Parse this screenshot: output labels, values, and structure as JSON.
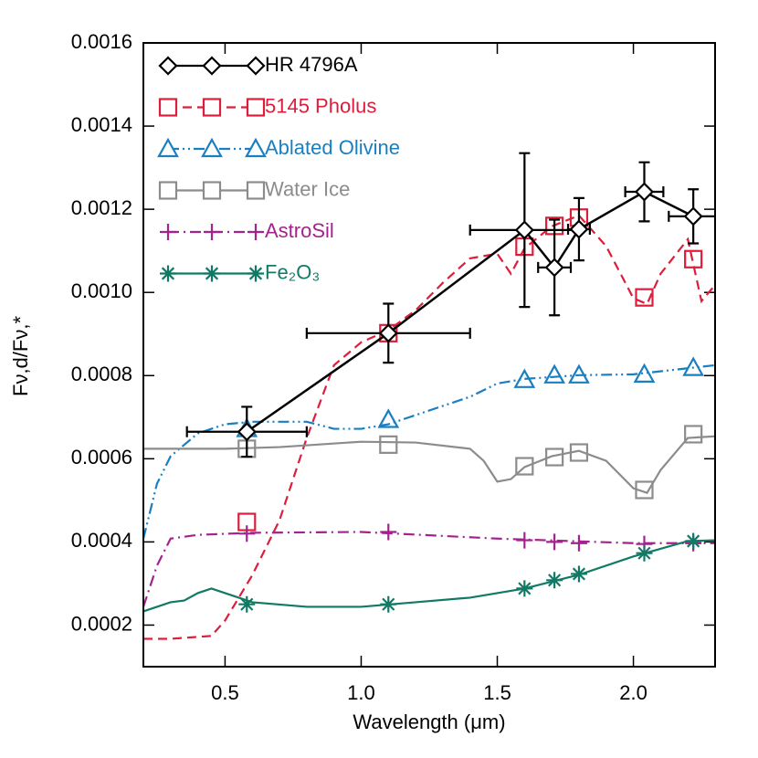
{
  "chart_data": {
    "type": "line",
    "xlabel": "Wavelength (μm)",
    "ylabel": "Fν,d/Fν,*",
    "xlim": [
      0.2,
      2.3
    ],
    "ylim": [
      0.0001,
      0.0016
    ],
    "xticks": [
      0.5,
      {
        "value": 1,
        "label": "1.0"
      },
      1.5,
      {
        "value": 2,
        "label": "2.0"
      }
    ],
    "yticks": [
      0.0002,
      0.0004,
      0.0006,
      0.0008,
      {
        "value": 0.001,
        "label": "0.0010"
      },
      0.0012,
      0.0014,
      0.0016
    ],
    "legend": "upper left",
    "x": [
      0.58,
      1.1,
      1.6,
      1.71,
      1.8,
      2.04,
      2.22
    ],
    "series": [
      {
        "name": "HR 4796A",
        "color": "#000000",
        "marker": "diamond",
        "dash": "solid",
        "values": [
          0.000665,
          0.000902,
          0.00115,
          0.00106,
          0.001152,
          0.001242,
          0.001183
        ],
        "yerr": [
          6e-05,
          7.1e-05,
          0.000185,
          0.000115,
          7.5e-05,
          7.1e-05,
          6.5e-05
        ],
        "xerr": [
          0.22,
          0.3,
          0.2,
          0.06,
          0.04,
          0.07,
          0.09
        ]
      },
      {
        "name": "5145 Pholus",
        "color": "#dc1e3c",
        "marker": "square",
        "dash": "dashed",
        "values": [
          0.000448,
          0.000902,
          0.00111,
          0.00116,
          0.00118,
          0.000988,
          0.00108
        ],
        "curve_x": [
          0.2,
          0.3,
          0.45,
          0.5,
          0.6,
          0.7,
          0.8,
          0.9,
          1.0,
          1.1,
          1.2,
          1.3,
          1.4,
          1.5,
          1.55,
          1.6,
          1.7,
          1.8,
          1.9,
          2.0,
          2.05,
          2.1,
          2.2,
          2.25,
          2.3
        ],
        "curve_y": [
          0.000167,
          0.000167,
          0.000174,
          0.000211,
          0.00032,
          0.000452,
          0.00065,
          0.000825,
          0.00088,
          0.000909,
          0.000957,
          0.001023,
          0.001082,
          0.001093,
          0.001045,
          0.001106,
          0.001159,
          0.001185,
          0.001111,
          0.000986,
          0.000972,
          0.001045,
          0.001128,
          0.000979,
          0.001018
        ]
      },
      {
        "name": "Ablated Olivine",
        "color": "#1a7fc1",
        "marker": "triangle",
        "dash": "dashdotdot",
        "values": [
          0.000672,
          0.000694,
          0.00079,
          0.000801,
          0.000801,
          0.000803,
          0.000819
        ],
        "curve_x": [
          0.2,
          0.25,
          0.3,
          0.4,
          0.5,
          0.6,
          0.7,
          0.8,
          0.9,
          1.0,
          1.1,
          1.2,
          1.4,
          1.5,
          1.6,
          1.8,
          2.0,
          2.3
        ],
        "curve_y": [
          0.000408,
          0.00054,
          0.000606,
          0.000661,
          0.000683,
          0.000689,
          0.000689,
          0.000689,
          0.000672,
          0.000672,
          0.000683,
          0.000705,
          0.000749,
          0.000781,
          0.000792,
          0.000801,
          0.000803,
          0.000825
        ]
      },
      {
        "name": "Water Ice",
        "color": "#8c8c8c",
        "marker": "square",
        "dash": "solid",
        "values": [
          0.000624,
          0.000634,
          0.000582,
          0.000604,
          0.000615,
          0.000525,
          0.000659
        ],
        "curve_x": [
          0.2,
          0.5,
          0.7,
          1.0,
          1.2,
          1.4,
          1.45,
          1.5,
          1.55,
          1.6,
          1.7,
          1.8,
          1.9,
          2.0,
          2.05,
          2.1,
          2.2,
          2.3
        ],
        "curve_y": [
          0.000624,
          0.000624,
          0.000628,
          0.000641,
          0.000639,
          0.000624,
          0.000595,
          0.000545,
          0.000551,
          0.00058,
          0.000606,
          0.000619,
          0.000595,
          0.000529,
          0.000518,
          0.000573,
          0.00065,
          0.000654
        ]
      },
      {
        "name": "AstroSil",
        "color": "#a3238e",
        "marker": "plus",
        "dash": "dashdot",
        "values": [
          0.00042,
          0.000424,
          0.000404,
          0.0004,
          0.000397,
          0.000395,
          0.000397
        ],
        "curve_x": [
          0.2,
          0.25,
          0.3,
          0.4,
          0.6,
          1.0,
          1.5,
          2.0,
          2.3
        ],
        "curve_y": [
          0.000244,
          0.000343,
          0.000408,
          0.000417,
          0.000422,
          0.000424,
          0.000408,
          0.000397,
          0.000397
        ]
      },
      {
        "name": "Fe₂O₃",
        "color": "#117a65",
        "marker": "asterisk",
        "dash": "solid",
        "values": [
          0.00025,
          0.00025,
          0.000288,
          0.000308,
          0.000323,
          0.000373,
          0.000402
        ],
        "curve_x": [
          0.2,
          0.3,
          0.35,
          0.4,
          0.45,
          0.5,
          0.6,
          0.8,
          1.0,
          1.2,
          1.4,
          1.6,
          1.8,
          2.0,
          2.2,
          2.3
        ],
        "curve_y": [
          0.000233,
          0.000255,
          0.000259,
          0.000277,
          0.000288,
          0.000277,
          0.000255,
          0.000244,
          0.000244,
          0.000255,
          0.000266,
          0.000288,
          0.000321,
          0.000365,
          0.000402,
          0.000404
        ]
      }
    ]
  }
}
